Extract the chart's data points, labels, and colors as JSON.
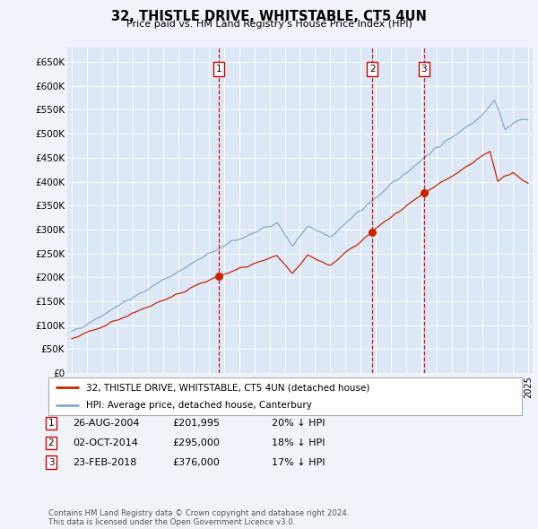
{
  "title": "32, THISTLE DRIVE, WHITSTABLE, CT5 4UN",
  "subtitle": "Price paid vs. HM Land Registry's House Price Index (HPI)",
  "background_color": "#f0f4fa",
  "plot_bg_color": "#dce8f5",
  "ylim": [
    0,
    680000
  ],
  "yticks": [
    0,
    50000,
    100000,
    150000,
    200000,
    250000,
    300000,
    350000,
    400000,
    450000,
    500000,
    550000,
    600000,
    650000
  ],
  "ytick_labels": [
    "£0",
    "£50K",
    "£100K",
    "£150K",
    "£200K",
    "£250K",
    "£300K",
    "£350K",
    "£400K",
    "£450K",
    "£500K",
    "£550K",
    "£600K",
    "£650K"
  ],
  "sale_dates_num": [
    2004.65,
    2014.75,
    2018.15
  ],
  "sale_prices": [
    201995,
    295000,
    376000
  ],
  "sale_labels": [
    "1",
    "2",
    "3"
  ],
  "vline_color": "#cc0000",
  "sale_color": "#cc2200",
  "hpi_line_color": "#88aacc",
  "legend_sale_label": "32, THISTLE DRIVE, WHITSTABLE, CT5 4UN (detached house)",
  "legend_hpi_label": "HPI: Average price, detached house, Canterbury",
  "table_data": [
    [
      "1",
      "26-AUG-2004",
      "£201,995",
      "20% ↓ HPI"
    ],
    [
      "2",
      "02-OCT-2014",
      "£295,000",
      "18% ↓ HPI"
    ],
    [
      "3",
      "23-FEB-2018",
      "£376,000",
      "17% ↓ HPI"
    ]
  ],
  "footnote": "Contains HM Land Registry data © Crown copyright and database right 2024.\nThis data is licensed under the Open Government Licence v3.0."
}
